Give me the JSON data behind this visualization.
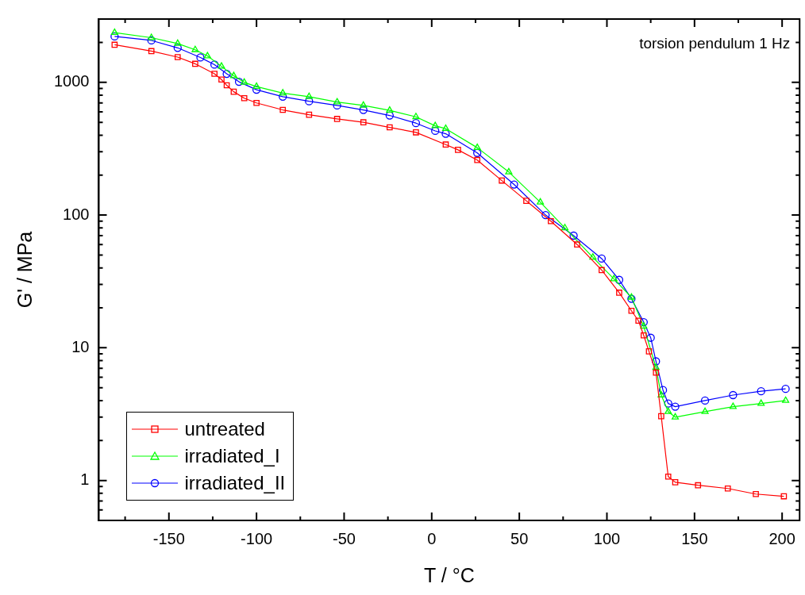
{
  "chart_data": {
    "type": "line",
    "xlabel": "T / °C",
    "ylabel": "G' / MPa",
    "annotations": [
      "torsion pendulum 1 Hz"
    ],
    "log": "y",
    "grid": false,
    "legend": "bottom left",
    "line_style": "solid",
    "xlim": [
      -190,
      210
    ],
    "xticks": [
      {
        "value": -175,
        "label": null
      },
      -150,
      {
        "value": -125,
        "label": null
      },
      -100,
      {
        "value": -75,
        "label": null
      },
      -50,
      {
        "value": -25,
        "label": null
      },
      0,
      {
        "value": 25,
        "label": null
      },
      50,
      {
        "value": 75,
        "label": null
      },
      100,
      {
        "value": 125,
        "label": null
      },
      150,
      {
        "value": 175,
        "label": null
      },
      200
    ],
    "ylim": [
      0.5,
      3000
    ],
    "yticks": [
      {
        "value": 0.6,
        "label": null
      },
      {
        "value": 0.7,
        "label": null
      },
      {
        "value": 0.8,
        "label": null
      },
      {
        "value": 0.9,
        "label": null
      },
      1,
      {
        "value": 2,
        "label": null
      },
      {
        "value": 3,
        "label": null
      },
      {
        "value": 4,
        "label": null
      },
      {
        "value": 5,
        "label": null
      },
      {
        "value": 6,
        "label": null
      },
      {
        "value": 7,
        "label": null
      },
      {
        "value": 8,
        "label": null
      },
      {
        "value": 9,
        "label": null
      },
      10,
      {
        "value": 20,
        "label": null
      },
      {
        "value": 30,
        "label": null
      },
      {
        "value": 40,
        "label": null
      },
      {
        "value": 50,
        "label": null
      },
      {
        "value": 60,
        "label": null
      },
      {
        "value": 70,
        "label": null
      },
      {
        "value": 80,
        "label": null
      },
      {
        "value": 90,
        "label": null
      },
      100,
      {
        "value": 200,
        "label": null
      },
      {
        "value": 300,
        "label": null
      },
      {
        "value": 400,
        "label": null
      },
      {
        "value": 500,
        "label": null
      },
      {
        "value": 600,
        "label": null
      },
      {
        "value": 700,
        "label": null
      },
      {
        "value": 800,
        "label": null
      },
      {
        "value": 900,
        "label": null
      },
      1000,
      {
        "value": 2000,
        "label": null
      },
      {
        "value": 3000,
        "label": null
      }
    ],
    "series": [
      {
        "name": "untreated",
        "color": "#ff0000",
        "marker": "square",
        "x": [
          -181,
          -160,
          -145,
          -135,
          -124,
          -120,
          -117,
          -113,
          -107,
          -100,
          -85,
          -70,
          -54,
          -39,
          -24,
          -9,
          8,
          15,
          26,
          40,
          54,
          68,
          83,
          97,
          107,
          114,
          118,
          121,
          124,
          128,
          131,
          135,
          139,
          152,
          169,
          185,
          201
        ],
        "values": [
          1920,
          1720,
          1550,
          1380,
          1160,
          1050,
          950,
          850,
          760,
          700,
          620,
          570,
          530,
          500,
          458,
          420,
          340,
          310,
          260,
          182,
          128,
          90,
          60,
          38.5,
          26,
          19,
          16,
          12.4,
          9.4,
          6.5,
          3.05,
          1.07,
          0.97,
          0.92,
          0.87,
          0.79,
          0.76
        ]
      },
      {
        "name": "irradiated_I",
        "color": "#00ff00",
        "marker": "triangle",
        "x": [
          -181,
          -160,
          -145,
          -135,
          -128,
          -120,
          -113,
          -107,
          -100,
          -85,
          -70,
          -54,
          -39,
          -24,
          -9,
          2,
          8,
          26,
          44,
          62,
          76,
          92,
          104,
          114,
          121,
          128,
          131,
          135,
          139,
          156,
          172,
          188,
          202
        ],
        "values": [
          2370,
          2170,
          1960,
          1760,
          1580,
          1320,
          1120,
          1000,
          930,
          830,
          780,
          710,
          670,
          615,
          550,
          470,
          448,
          322,
          211,
          125,
          80,
          48,
          33,
          24,
          14.5,
          7.1,
          4.4,
          3.3,
          3.0,
          3.3,
          3.6,
          3.8,
          4.0
        ]
      },
      {
        "name": "irradiated_II",
        "color": "#0000ff",
        "marker": "circle",
        "x": [
          -181,
          -160,
          -145,
          -132,
          -124,
          -117,
          -110,
          -100,
          -85,
          -70,
          -54,
          -39,
          -24,
          -9,
          2,
          8,
          26,
          47,
          65,
          81,
          97,
          107,
          114,
          121,
          125,
          128,
          132,
          135,
          139,
          156,
          172,
          188,
          202
        ],
        "values": [
          2220,
          2070,
          1820,
          1540,
          1360,
          1160,
          1010,
          880,
          780,
          720,
          670,
          620,
          563,
          493,
          431,
          410,
          294,
          170,
          100,
          70,
          47,
          32.5,
          23.4,
          15.6,
          11.9,
          7.9,
          4.8,
          3.8,
          3.6,
          4.0,
          4.4,
          4.7,
          4.9
        ]
      }
    ]
  }
}
